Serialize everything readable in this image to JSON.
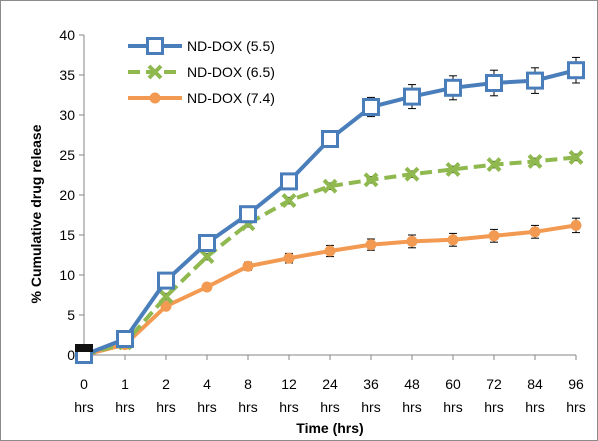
{
  "chart_data": {
    "type": "line",
    "xlabel": "Time (hrs)",
    "ylabel": "% Cumulative drug release",
    "ylim": [
      0,
      40
    ],
    "yticks": [
      0,
      5,
      10,
      15,
      20,
      25,
      30,
      35,
      40
    ],
    "categories": [
      [
        "0",
        "hrs"
      ],
      [
        "1",
        "hrs"
      ],
      [
        "2",
        "hrs"
      ],
      [
        "4",
        "hrs"
      ],
      [
        "8",
        "hrs"
      ],
      [
        "12",
        "hrs"
      ],
      [
        "24",
        "hrs"
      ],
      [
        "36",
        "hrs"
      ],
      [
        "48",
        "hrs"
      ],
      [
        "60",
        "hrs"
      ],
      [
        "72",
        "hrs"
      ],
      [
        "84",
        "hrs"
      ],
      [
        "96",
        "hrs"
      ]
    ],
    "grid": false,
    "legend_position": "top-left",
    "series": [
      {
        "name": "ND-DOX (5.5)",
        "marker": "square",
        "line_style": "solid",
        "color": "#4a7ebb",
        "values": [
          0,
          2,
          9.3,
          14,
          17.6,
          21.7,
          27,
          31,
          32.3,
          33.4,
          34,
          34.3,
          35.6
        ],
        "errors": [
          0,
          0.5,
          0.8,
          0.8,
          0.8,
          0.9,
          0.9,
          1.2,
          1.5,
          1.5,
          1.6,
          1.6,
          1.6
        ]
      },
      {
        "name": "ND-DOX (6.5)",
        "marker": "x",
        "line_style": "dashed",
        "color": "#8fb84f",
        "values": [
          0,
          1.5,
          7.3,
          12.3,
          16.4,
          19.3,
          21.1,
          21.9,
          22.6,
          23.2,
          23.8,
          24.2,
          24.7
        ],
        "errors": [
          0,
          0.3,
          0.4,
          0.4,
          0.4,
          0.4,
          0.4,
          0.4,
          0.4,
          0.4,
          0.4,
          0.4,
          0.4
        ]
      },
      {
        "name": "ND-DOX (7.4)",
        "marker": "circle",
        "line_style": "solid",
        "color": "#f29a52",
        "values": [
          0,
          1.3,
          6.1,
          8.5,
          11.1,
          12.1,
          13,
          13.8,
          14.2,
          14.4,
          14.9,
          15.4,
          16.2
        ],
        "errors": [
          0,
          0.3,
          0.4,
          0.4,
          0.5,
          0.6,
          0.7,
          0.7,
          0.8,
          0.8,
          0.8,
          0.8,
          0.9
        ]
      }
    ]
  }
}
